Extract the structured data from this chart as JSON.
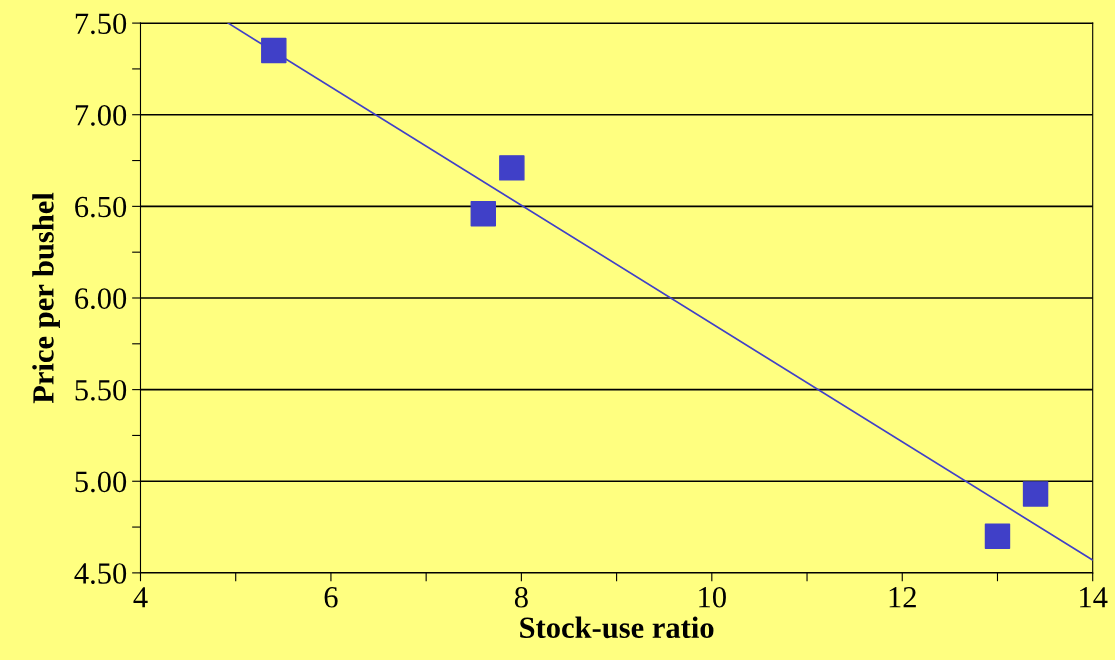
{
  "chart_data": {
    "type": "scatter",
    "xlabel": "Stock-use ratio",
    "ylabel": "Price per bushel",
    "x": [
      5.4,
      7.6,
      7.9,
      13.0,
      13.4
    ],
    "series": [
      {
        "color": "#4040c8",
        "values": [
          7.35,
          6.46,
          6.71,
          4.7,
          4.93
        ],
        "marker": "square"
      },
      {
        "type": "line",
        "color": "#4040c8",
        "x": [
          4.92,
          14
        ],
        "values": [
          7.5,
          4.57
        ],
        "marker": "none",
        "line_style": "solid"
      }
    ],
    "xlim": [
      4,
      14
    ],
    "ylim": [
      4.5,
      7.5
    ],
    "xticks": [
      4,
      {
        "value": 5,
        "label": null
      },
      6,
      {
        "value": 7,
        "label": null
      },
      8,
      {
        "value": 9,
        "label": null
      },
      10,
      {
        "value": 11,
        "label": null
      },
      12,
      {
        "value": 13,
        "label": null
      },
      14
    ],
    "yticks": [
      {
        "value": 4.5,
        "label": "4.50"
      },
      {
        "value": 4.75,
        "label": null
      },
      {
        "value": 5.0,
        "label": "5.00"
      },
      {
        "value": 5.25,
        "label": null
      },
      {
        "value": 5.5,
        "label": "5.50"
      },
      {
        "value": 5.75,
        "label": null
      },
      {
        "value": 6.0,
        "label": "6.00"
      },
      {
        "value": 6.25,
        "label": null
      },
      {
        "value": 6.5,
        "label": "6.50"
      },
      {
        "value": 6.75,
        "label": null
      },
      {
        "value": 7.0,
        "label": "7.00"
      },
      {
        "value": 7.25,
        "label": null
      },
      {
        "value": 7.5,
        "label": "7.50"
      }
    ],
    "grid": "y",
    "legend": false
  }
}
